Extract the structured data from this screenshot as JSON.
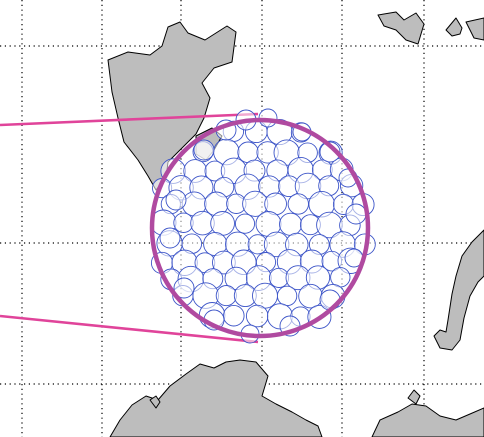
{
  "map": {
    "land_fill": "#bdbdbd",
    "land_stroke": "#000000",
    "grid_color": "#000000",
    "circle_color": "#3d55c8",
    "ring_color": "#b04aa0",
    "leader_color": "#e0449a"
  }
}
